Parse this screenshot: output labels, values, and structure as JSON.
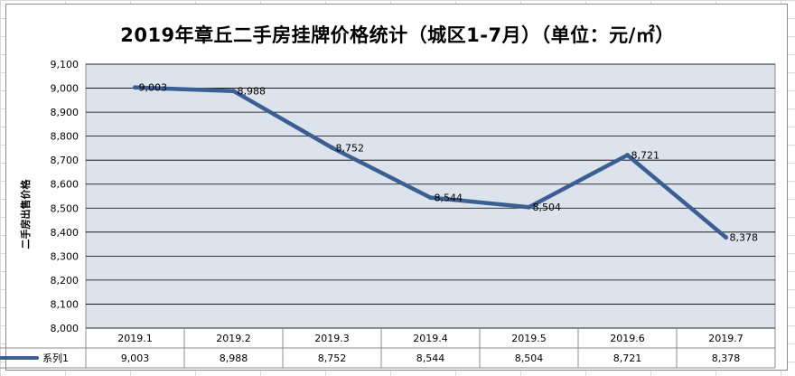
{
  "page": {
    "title": "2019年章丘二手房挂牌价格统计（城区1-7月）（单位：元/㎡）"
  },
  "chart_data": {
    "type": "line",
    "title": "2019年章丘二手房挂牌价格统计（城区1-7月）（单位：元/㎡）",
    "xlabel": "",
    "ylabel": "二手房出售价格",
    "categories": [
      "2019.1",
      "2019.2",
      "2019.3",
      "2019.4",
      "2019.5",
      "2019.6",
      "2019.7"
    ],
    "series": [
      {
        "name": "系列1",
        "values": [
          9003,
          8988,
          8752,
          8544,
          8504,
          8721,
          8378
        ],
        "color": "#3b5f92"
      }
    ],
    "ylim": [
      8000,
      9100
    ],
    "yticks": [
      8000,
      8100,
      8200,
      8300,
      8400,
      8500,
      8600,
      8700,
      8800,
      8900,
      9000,
      9100
    ],
    "grid": true,
    "data_table": true,
    "legend": "data-table",
    "plot_background": "#dce3ec",
    "number_format": "thousands-comma"
  }
}
